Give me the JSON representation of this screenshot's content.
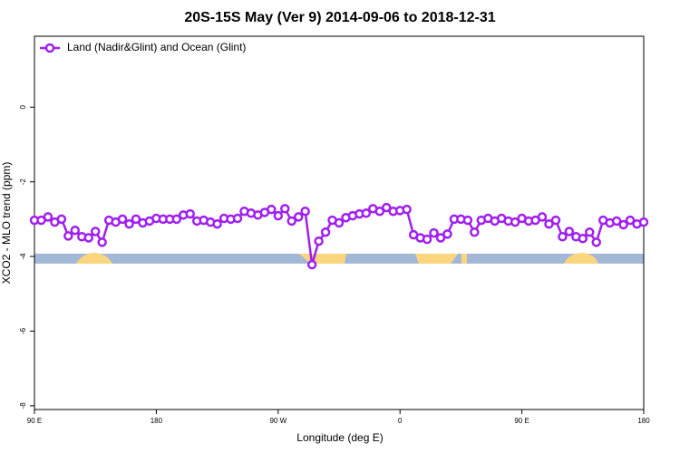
{
  "chart_data": {
    "type": "line",
    "title": "20S-15S May (Ver 9)   2014-09-06 to 2018-12-31",
    "x_label": "Longitude (deg E)",
    "y_label": "XCO2 - MLO trend (ppm)",
    "x": [
      90,
      95,
      100,
      105,
      110,
      115,
      120,
      125,
      130,
      135,
      140,
      145,
      150,
      155,
      160,
      165,
      170,
      175,
      180,
      185,
      190,
      195,
      200,
      205,
      210,
      215,
      220,
      225,
      230,
      235,
      240,
      245,
      250,
      255,
      260,
      265,
      270,
      275,
      280,
      285,
      290,
      295,
      300,
      305,
      310,
      315,
      320,
      325,
      330,
      335,
      340,
      345,
      350,
      355,
      360,
      365,
      370,
      375,
      380,
      385,
      390,
      395,
      400,
      405,
      410,
      415,
      420,
      425,
      430,
      435,
      440,
      445,
      450,
      455,
      460,
      465,
      470,
      475,
      480,
      485,
      490,
      495,
      500,
      505,
      510,
      515,
      520,
      525,
      530,
      535,
      540
    ],
    "series": [
      {
        "name": "Land (Nadir&Glint) and Ocean (Glint)",
        "color": "#a020f0",
        "values": [
          -3.03,
          -3.03,
          -2.94,
          -3.08,
          -3.0,
          -3.45,
          -3.3,
          -3.47,
          -3.5,
          -3.33,
          -3.62,
          -3.03,
          -3.08,
          -3.0,
          -3.13,
          -3.0,
          -3.1,
          -3.05,
          -2.98,
          -3.0,
          -3.0,
          -3.0,
          -2.89,
          -2.86,
          -3.05,
          -3.03,
          -3.08,
          -3.13,
          -2.98,
          -3.0,
          -2.98,
          -2.79,
          -2.84,
          -2.89,
          -2.82,
          -2.74,
          -2.91,
          -2.72,
          -3.05,
          -2.94,
          -2.79,
          -4.22,
          -3.59,
          -3.35,
          -3.03,
          -3.1,
          -2.96,
          -2.91,
          -2.86,
          -2.84,
          -2.72,
          -2.79,
          -2.69,
          -2.79,
          -2.77,
          -2.74,
          -3.42,
          -3.5,
          -3.54,
          -3.37,
          -3.5,
          -3.4,
          -3.0,
          -3.0,
          -3.03,
          -3.35,
          -3.03,
          -2.98,
          -3.05,
          -2.98,
          -3.05,
          -3.08,
          -2.98,
          -3.05,
          -3.03,
          -2.94,
          -3.13,
          -3.03,
          -3.47,
          -3.33,
          -3.47,
          -3.52,
          -3.35,
          -3.62,
          -3.03,
          -3.1,
          -3.05,
          -3.15,
          -3.03,
          -3.13,
          -3.08
        ]
      }
    ],
    "xlim": [
      90,
      540
    ],
    "xticks": [
      {
        "value": 90,
        "label": "90 E"
      },
      180,
      {
        "value": 270,
        "label": "90 W"
      },
      {
        "value": 360,
        "label": "0"
      },
      {
        "value": 450,
        "label": "90 E"
      },
      {
        "value": 540,
        "label": "180"
      }
    ],
    "ylim": [
      -8.1,
      1.9
    ],
    "yticks": [
      0,
      -2,
      -4,
      -6,
      -8
    ],
    "legend": "top-left"
  }
}
